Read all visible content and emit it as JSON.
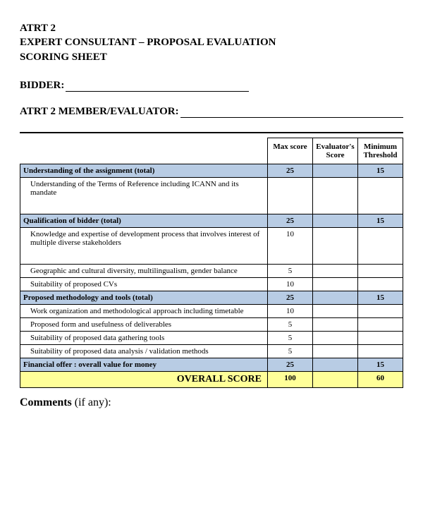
{
  "header": {
    "line1": "ATRT 2",
    "line2": "EXPERT CONSULTANT – PROPOSAL EVALUATION",
    "line3": "SCORING SHEET"
  },
  "fields": {
    "bidder_label": "BIDDER:",
    "evaluator_label": "ATRT 2 MEMBER/EVALUATOR:"
  },
  "columns": {
    "desc": "",
    "max": "Max score",
    "evaluator": "Evaluator's Score",
    "min": "Minimum Threshold"
  },
  "sections": [
    {
      "title": "Understanding of the assignment (total)",
      "max": "25",
      "min": "15",
      "rows": [
        {
          "desc": "Understanding of the Terms of Reference including ICANN and its mandate",
          "max": "",
          "tall": true
        }
      ]
    },
    {
      "title": "Qualification of bidder (total)",
      "max": "25",
      "min": "15",
      "rows": [
        {
          "desc": "Knowledge and expertise of development process that involves interest of multiple diverse stakeholders",
          "max": "10",
          "tall": true
        },
        {
          "desc": "Geographic and cultural diversity, multilingualism, gender balance",
          "max": "5"
        },
        {
          "desc": "Suitability of proposed CVs",
          "max": "10"
        }
      ]
    },
    {
      "title": "Proposed methodology and tools (total)",
      "max": "25",
      "min": "15",
      "rows": [
        {
          "desc": "Work organization and methodological approach including timetable",
          "max": "10"
        },
        {
          "desc": "Proposed form and usefulness of deliverables",
          "max": "5"
        },
        {
          "desc": "Suitability of proposed data gathering tools",
          "max": "5"
        },
        {
          "desc": "Suitability of proposed data analysis / validation methods",
          "max": "5"
        }
      ]
    }
  ],
  "financial": {
    "title": "Financial offer : overall value for money",
    "max": "25",
    "min": "15"
  },
  "overall": {
    "label": "OVERALL SCORE",
    "max": "100",
    "min": "60"
  },
  "comments": {
    "label": "Comments",
    "suffix": " (if any):"
  },
  "colors": {
    "section_bg": "#b8cce4",
    "overall_bg": "#ffff99",
    "border": "#000000"
  }
}
